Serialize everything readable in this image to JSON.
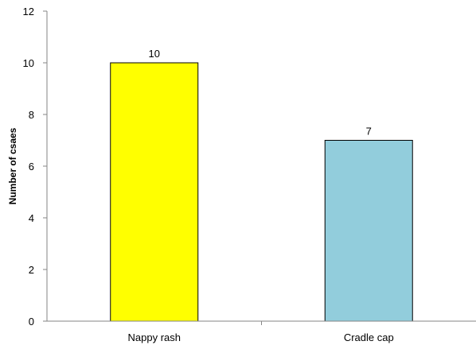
{
  "chart_data": {
    "type": "bar",
    "categories": [
      "Nappy rash",
      "Cradle cap"
    ],
    "values": [
      10,
      7
    ],
    "data_labels": [
      "10",
      "7"
    ],
    "colors": [
      "#ffff00",
      "#92cddc"
    ],
    "ylabel": "Number of csaes",
    "xlabel": "",
    "ylim": [
      0,
      12
    ],
    "yticks": [
      0,
      2,
      4,
      6,
      8,
      10,
      12
    ],
    "grid": false,
    "legend": "none"
  }
}
